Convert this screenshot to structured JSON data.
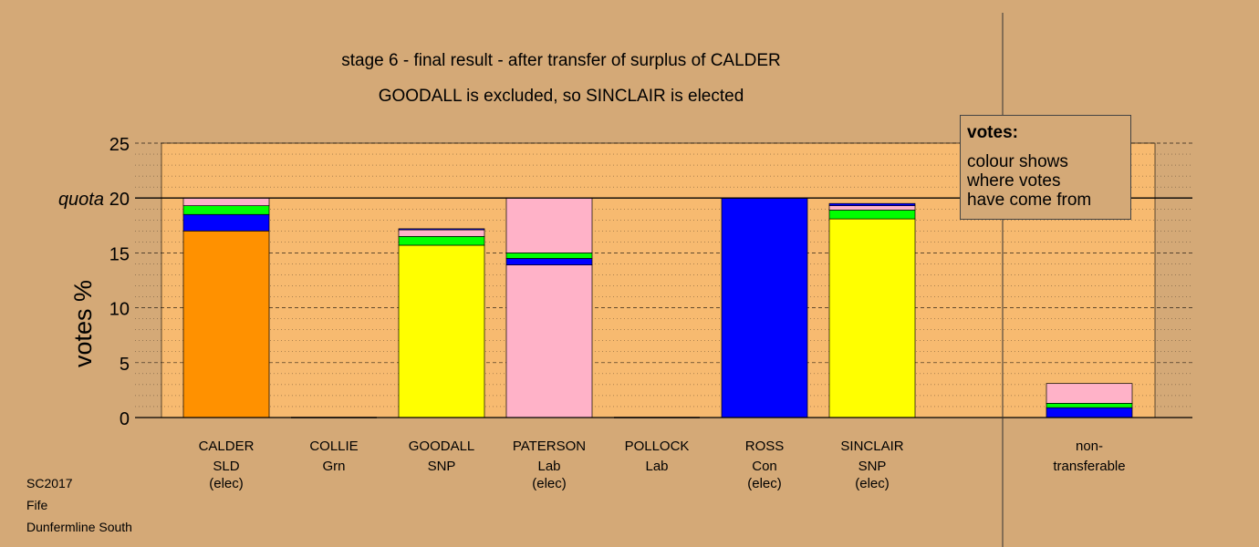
{
  "chart_data": {
    "type": "bar",
    "title": "stage 6 - final result - after transfer of surplus of CALDER",
    "subtitle": "GOODALL is excluded, so SINCLAIR is elected",
    "ylabel": "votes %",
    "ylim": [
      0,
      25
    ],
    "yticks": [
      "0",
      "5",
      "10",
      "15",
      "20",
      "25"
    ],
    "quota": 20,
    "quota_label": "quota",
    "colors": {
      "SLD": "#ff9100",
      "Con": "#0000ff",
      "Grn": "#00ff00",
      "Lab": "#ffb2c8",
      "SNP": "#ffff00",
      "background": "#d4a977",
      "plot_bg": "#f7ba70"
    },
    "candidates": [
      {
        "name": "CALDER",
        "party": "SLD",
        "status": "(elec)",
        "segments": [
          {
            "from": "SLD",
            "value": 17.0
          },
          {
            "from": "Con",
            "value": 1.5
          },
          {
            "from": "Grn",
            "value": 0.8
          },
          {
            "from": "Lab",
            "value": 0.7
          }
        ]
      },
      {
        "name": "COLLIE",
        "party": "Grn",
        "status": "",
        "segments": []
      },
      {
        "name": "GOODALL",
        "party": "SNP",
        "status": "",
        "segments": [
          {
            "from": "SNP",
            "value": 15.7
          },
          {
            "from": "Grn",
            "value": 0.8
          },
          {
            "from": "Lab",
            "value": 0.6
          },
          {
            "from": "Con",
            "value": 0.1
          }
        ]
      },
      {
        "name": "PATERSON",
        "party": "Lab",
        "status": "(elec)",
        "segments": [
          {
            "from": "Lab",
            "value": 13.9
          },
          {
            "from": "Con",
            "value": 0.6
          },
          {
            "from": "Grn",
            "value": 0.5
          },
          {
            "from": "Lab",
            "value": 5.0
          }
        ]
      },
      {
        "name": "POLLOCK",
        "party": "Lab",
        "status": "",
        "segments": []
      },
      {
        "name": "ROSS",
        "party": "Con",
        "status": "(elec)",
        "segments": [
          {
            "from": "Con",
            "value": 20.0
          }
        ]
      },
      {
        "name": "SINCLAIR",
        "party": "SNP",
        "status": "(elec)",
        "segments": [
          {
            "from": "SNP",
            "value": 18.1
          },
          {
            "from": "Grn",
            "value": 0.8
          },
          {
            "from": "Lab",
            "value": 0.4
          },
          {
            "from": "Con",
            "value": 0.2
          }
        ]
      }
    ],
    "nontransferable": {
      "label_line1": "non-",
      "label_line2": "transferable",
      "segments": [
        {
          "from": "Con",
          "value": 0.9
        },
        {
          "from": "Grn",
          "value": 0.4
        },
        {
          "from": "Lab",
          "value": 1.8
        }
      ]
    },
    "legend_title": "votes:",
    "legend_lines": [
      "colour shows",
      "where votes",
      "have come from"
    ]
  },
  "footer": {
    "line1": "SC2017",
    "line2": "Fife",
    "line3": "Dunfermline South"
  }
}
